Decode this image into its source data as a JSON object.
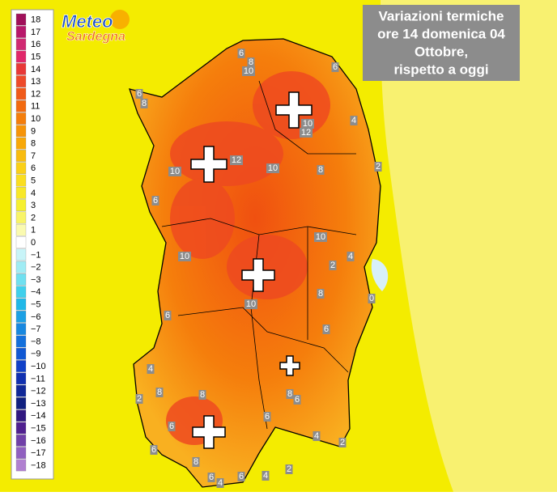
{
  "logo": {
    "line1": "Meteo",
    "line2": "Sardegna"
  },
  "title": [
    "Variazioni termiche",
    "ore 14 domenica 04",
    "Ottobre,",
    "rispetto a oggi"
  ],
  "legend": {
    "labels": [
      "18",
      "17",
      "16",
      "15",
      "14",
      "13",
      "12",
      "11",
      "10",
      "9",
      "8",
      "7",
      "6",
      "5",
      "4",
      "3",
      "2",
      "1",
      "0",
      "−1",
      "−2",
      "−3",
      "−4",
      "−5",
      "−6",
      "−7",
      "−8",
      "−9",
      "−10",
      "−11",
      "−12",
      "−13",
      "−14",
      "−15",
      "−16",
      "−17",
      "−18"
    ],
    "colors": [
      "#a0105a",
      "#b8186a",
      "#d02a72",
      "#e0286a",
      "#e83838",
      "#ee4a2a",
      "#f05a1a",
      "#f26a10",
      "#f47e0c",
      "#f69408",
      "#f8a808",
      "#f8bc10",
      "#fad018",
      "#fade20",
      "#f8e828",
      "#f6f030",
      "#f8f468",
      "#fafab0",
      "#ffffff",
      "#c8f4f8",
      "#a0ecf4",
      "#70e0f0",
      "#40d0ec",
      "#20b8e8",
      "#1ca0e4",
      "#1888e0",
      "#1470dc",
      "#1058d4",
      "#1040c8",
      "#1030b0",
      "#102898",
      "#102080",
      "#301880",
      "#502090",
      "#7040a8",
      "#9060c0",
      "#b080d0"
    ]
  },
  "map_labels": [
    "6",
    "8",
    "10",
    "6",
    "6",
    "8",
    "10",
    "12",
    "4",
    "12",
    "10",
    "10",
    "8",
    "2",
    "6",
    "10",
    "4",
    "2",
    "10",
    "8",
    "10",
    "0",
    "6",
    "6",
    "4",
    "2",
    "8",
    "8",
    "6",
    "8",
    "6",
    "4",
    "2",
    "6",
    "8",
    "6",
    "4",
    "6",
    "4",
    "2",
    "6"
  ]
}
